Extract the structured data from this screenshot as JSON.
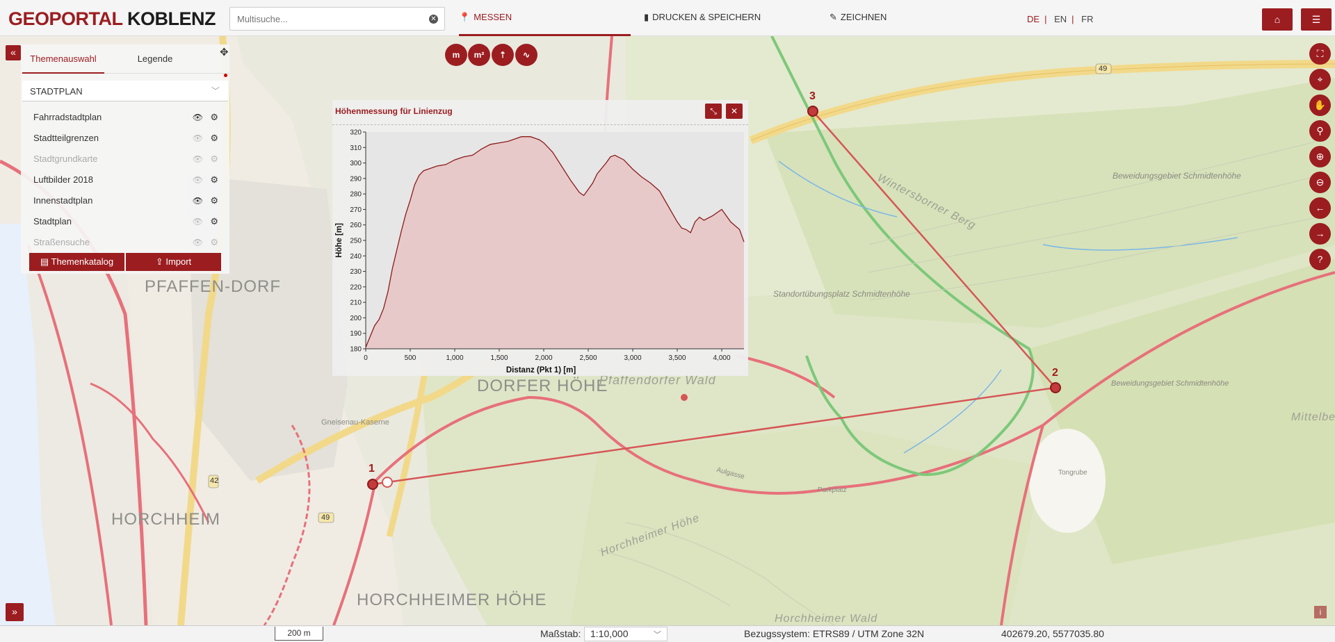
{
  "header": {
    "logo_part1": "GEOPORTAL",
    "logo_part2": "KOBLENZ",
    "search_placeholder": "Multisuche...",
    "tabs": [
      {
        "label": "MESSEN",
        "icon": "map-marker-icon"
      },
      {
        "label": "DRUCKEN & SPEICHERN",
        "icon": "file-icon"
      },
      {
        "label": "ZEICHNEN",
        "icon": "brush-icon"
      }
    ],
    "languages": [
      "DE",
      "EN",
      "FR"
    ],
    "active_language": "DE"
  },
  "layer_panel": {
    "tabs": [
      "Themenauswahl",
      "Legende"
    ],
    "selected_theme": "STADTPLAN",
    "layers": [
      {
        "name": "Fahrradstadtplan",
        "visible": true,
        "enabled": true
      },
      {
        "name": "Stadtteilgrenzen",
        "visible": false,
        "enabled": true
      },
      {
        "name": "Stadtgrundkarte",
        "visible": false,
        "enabled": false
      },
      {
        "name": "Luftbilder 2018",
        "visible": false,
        "enabled": true
      },
      {
        "name": "Innenstadtplan",
        "visible": true,
        "enabled": true
      },
      {
        "name": "Stadtplan",
        "visible": false,
        "enabled": true
      },
      {
        "name": "Straßensuche",
        "visible": false,
        "enabled": false
      }
    ],
    "catalog_button": "Themenkatalog",
    "import_button": "Import"
  },
  "measure_tools": [
    "m",
    "m²",
    "height-icon",
    "profile-icon"
  ],
  "profile_dialog": {
    "title": "Höhenmessung für Linienzug"
  },
  "chart_data": {
    "type": "area",
    "title": "",
    "xlabel": "Distanz (Pkt 1) [m]",
    "ylabel": "Höhe [m]",
    "xlim": [
      0,
      4250
    ],
    "ylim": [
      180,
      320
    ],
    "x_ticks": [
      "0",
      "500",
      "1,000",
      "1,500",
      "2,000",
      "2,500",
      "3,000",
      "3,500",
      "4,000"
    ],
    "y_ticks": [
      "180",
      "190",
      "200",
      "210",
      "220",
      "230",
      "240",
      "250",
      "260",
      "270",
      "280",
      "290",
      "300",
      "310",
      "320"
    ],
    "color": "#8b1a1a",
    "fill": "#e8c9c9",
    "series": [
      {
        "x": [
          0,
          50,
          100,
          150,
          200,
          250,
          300,
          350,
          400,
          450,
          500,
          550,
          600,
          650,
          700,
          750,
          800,
          900,
          1000,
          1100,
          1200,
          1300,
          1400,
          1500,
          1600,
          1700,
          1750,
          1800,
          1850,
          1900,
          1950,
          2000,
          2100,
          2200,
          2300,
          2400,
          2450,
          2500,
          2550,
          2600,
          2700,
          2750,
          2800,
          2900,
          3000,
          3100,
          3200,
          3300,
          3400,
          3500,
          3550,
          3600,
          3650,
          3700,
          3750,
          3800,
          3900,
          4000,
          4100,
          4200,
          4250
        ],
        "y": [
          181,
          188,
          195,
          199,
          206,
          217,
          232,
          244,
          256,
          267,
          276,
          286,
          292,
          295,
          296,
          297,
          298,
          299,
          302,
          304,
          305,
          309,
          312,
          313,
          314,
          316,
          317,
          317,
          317,
          316,
          315,
          313,
          307,
          298,
          289,
          281,
          279,
          283,
          287,
          293,
          300,
          304,
          305,
          302,
          296,
          291,
          287,
          282,
          272,
          262,
          258,
          257,
          255,
          262,
          265,
          263,
          266,
          270,
          262,
          257,
          249
        ]
      }
    ]
  },
  "map": {
    "district_labels": [
      "PFAFFEN-DORF",
      "DORFER HÖHE",
      "HORCHHEIM",
      "HORCHHEIMER HÖHE"
    ],
    "forest_labels": [
      "Pfaffendorfer Wald",
      "Wintersborner Berg",
      "Horchheimer Höhe",
      "Standortübungsplatz Schmidtenhöhe",
      "Beweidungsgebiet Schmidtenhöhe",
      "Beweidungsgebiet Schmidtenhöhe",
      "Horchheimer Wald",
      "Mittelberg"
    ],
    "small_labels": [
      "Gneisenau-Kaserne",
      "Tongrube",
      "Aulgasse",
      "Parkplatz"
    ],
    "road_badges": [
      "49",
      "42",
      "49"
    ],
    "measure_points": [
      "1",
      "2",
      "3"
    ]
  },
  "right_tools": [
    "fullscreen-icon",
    "locate-icon",
    "pan-icon",
    "bike-icon",
    "zoom-in-icon",
    "zoom-out-icon",
    "back-icon",
    "forward-icon",
    "help-icon"
  ],
  "statusbar": {
    "scale_bar": "200 m",
    "scale_label": "Maßstab:",
    "scale_value": "1:10,000",
    "crs_label": "Bezugssystem: ETRS89 / UTM Zone 32N",
    "coordinates": "402679.20, 5577035.80"
  }
}
